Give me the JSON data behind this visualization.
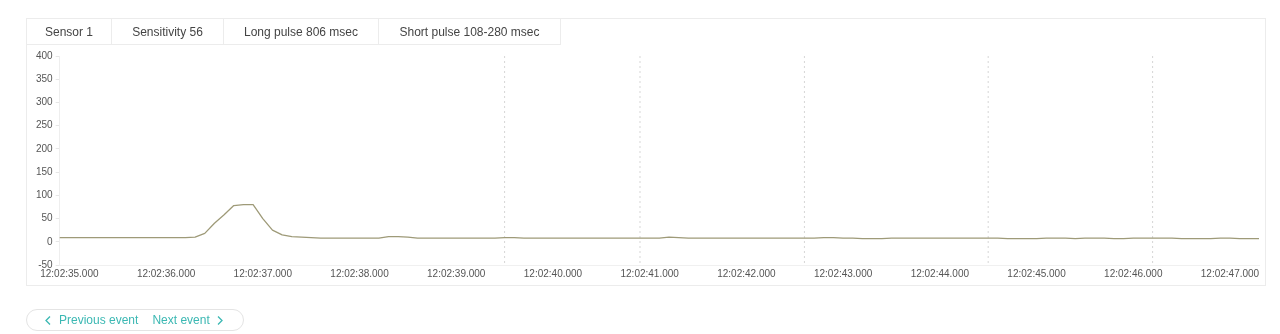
{
  "chart_data": {
    "type": "line",
    "categories": [
      null,
      "12:02:35.000",
      null,
      null,
      null,
      null,
      null,
      null,
      null,
      null,
      null,
      "12:02:36.000",
      null,
      null,
      null,
      null,
      null,
      null,
      null,
      null,
      null,
      "12:02:37.000",
      null,
      null,
      null,
      null,
      null,
      null,
      null,
      null,
      null,
      "12:02:38.000",
      null,
      null,
      null,
      null,
      null,
      null,
      null,
      null,
      null,
      "12:02:39.000",
      null,
      null,
      null,
      null,
      null,
      null,
      null,
      null,
      null,
      "12:02:40.000",
      null,
      null,
      null,
      null,
      null,
      null,
      null,
      null,
      null,
      "12:02:41.000",
      null,
      null,
      null,
      null,
      null,
      null,
      null,
      null,
      null,
      "12:02:42.000",
      null,
      null,
      null,
      null,
      null,
      null,
      null,
      null,
      null,
      "12:02:43.000",
      null,
      null,
      null,
      null,
      null,
      null,
      null,
      null,
      null,
      "12:02:44.000",
      null,
      null,
      null,
      null,
      null,
      null,
      null,
      null,
      null,
      "12:02:45.000",
      null,
      null,
      null,
      null,
      null,
      null,
      null,
      null,
      null,
      "12:02:46.000",
      null,
      null,
      null,
      null,
      null,
      null,
      null,
      null,
      null,
      "12:02:47.000",
      null,
      null,
      null
    ],
    "series": [
      {
        "color": "#9e9a78",
        "values": [
          9,
          9,
          9,
          9,
          9,
          9,
          9,
          9,
          9,
          9,
          9,
          9,
          9,
          9,
          10,
          18,
          40,
          58,
          78,
          80,
          80,
          50,
          25,
          15,
          11,
          10,
          9,
          8,
          8,
          8,
          8,
          8,
          8,
          8,
          11,
          11,
          10,
          8,
          8,
          8,
          8,
          8,
          8,
          8,
          8,
          8,
          9,
          9,
          8,
          8,
          8,
          8,
          8,
          8,
          8,
          8,
          8,
          8,
          8,
          8,
          8,
          8,
          8,
          10,
          9,
          8,
          8,
          8,
          8,
          8,
          8,
          8,
          8,
          8,
          8,
          8,
          8,
          8,
          8,
          9,
          9,
          8,
          8,
          7,
          7,
          7,
          8,
          8,
          8,
          8,
          8,
          8,
          8,
          8,
          8,
          8,
          8,
          8,
          7,
          7,
          7,
          7,
          8,
          8,
          8,
          7,
          8,
          8,
          8,
          7,
          7,
          8,
          8,
          8,
          8,
          8,
          7,
          7,
          7,
          7,
          8,
          8,
          7,
          7,
          7
        ]
      }
    ],
    "ylim": [
      -50,
      400
    ],
    "yticks": [
      -50,
      0,
      50,
      100,
      150,
      200,
      250,
      300,
      350,
      400
    ],
    "grid": false,
    "legend": false,
    "marker": "none",
    "line_style": "solid",
    "annotations": [
      "Sensor 1",
      "Sensitivity 56",
      "Long pulse 806 msec",
      "Short pulse 108-280 msec",
      "Previous event",
      "Next event"
    ]
  }
}
